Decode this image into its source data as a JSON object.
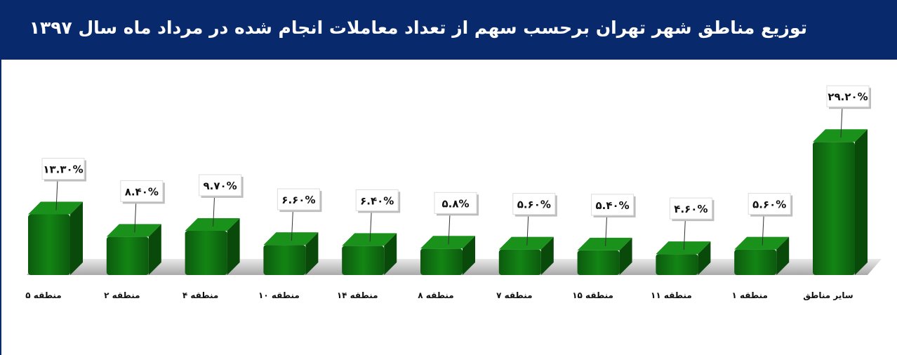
{
  "header": {
    "title": "توزیع مناطق شهر تهران برحسب سهم از تعداد معاملات انجام شده در مرداد ماه سال ۱۳۹۷"
  },
  "colors": {
    "header_bg": "#08296b",
    "bar": "#0e6b10",
    "floor": "#c9c9c9"
  },
  "chart_data": {
    "type": "bar",
    "title": "توزیع مناطق شهر تهران برحسب سهم از تعداد معاملات انجام شده در مرداد ماه سال ۱۳۹۷",
    "categories": [
      "منطقه ۵",
      "منطقه ۲",
      "منطقه ۴",
      "منطقه ۱۰",
      "منطقه ۱۴",
      "منطقه ۸",
      "منطقه ۷",
      "منطقه ۱۵",
      "منطقه ۱۱",
      "منطقه ۱",
      "سایر مناطق"
    ],
    "values": [
      13.3,
      8.4,
      9.7,
      6.6,
      6.4,
      5.8,
      5.6,
      5.4,
      4.6,
      5.6,
      29.2
    ],
    "data_labels": [
      "۱۳.۳۰%",
      "۸.۴۰%",
      "۹.۷۰%",
      "۶.۶۰%",
      "۶.۴۰%",
      "۵.۸%",
      "۵.۶۰%",
      "۵.۴۰%",
      "۴.۶۰%",
      "۵.۶۰%",
      "۲۹.۲۰%"
    ],
    "xlabel": "",
    "ylabel": "",
    "grid": false,
    "legend": "none"
  }
}
